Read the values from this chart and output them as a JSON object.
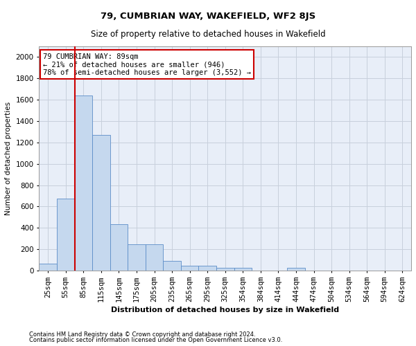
{
  "title1": "79, CUMBRIAN WAY, WAKEFIELD, WF2 8JS",
  "title2": "Size of property relative to detached houses in Wakefield",
  "xlabel": "Distribution of detached houses by size in Wakefield",
  "ylabel": "Number of detached properties",
  "footnote1": "Contains HM Land Registry data © Crown copyright and database right 2024.",
  "footnote2": "Contains public sector information licensed under the Open Government Licence v3.0.",
  "categories": [
    "25sqm",
    "55sqm",
    "85sqm",
    "115sqm",
    "145sqm",
    "175sqm",
    "205sqm",
    "235sqm",
    "265sqm",
    "295sqm",
    "325sqm",
    "354sqm",
    "384sqm",
    "414sqm",
    "444sqm",
    "474sqm",
    "504sqm",
    "534sqm",
    "564sqm",
    "594sqm",
    "624sqm"
  ],
  "values": [
    67,
    672,
    1638,
    1270,
    437,
    247,
    247,
    90,
    42,
    42,
    25,
    25,
    0,
    0,
    27,
    0,
    0,
    0,
    0,
    0,
    0
  ],
  "bar_color": "#c5d8ee",
  "bar_edge_color": "#5b8dc8",
  "grid_color": "#c8d0dc",
  "annotation_text": "79 CUMBRIAN WAY: 89sqm\n← 21% of detached houses are smaller (946)\n78% of semi-detached houses are larger (3,552) →",
  "annotation_box_color": "#ffffff",
  "annotation_box_edge_color": "#cc0000",
  "vline_x_index": 2,
  "vline_color": "#cc0000",
  "ylim": [
    0,
    2100
  ],
  "yticks": [
    0,
    200,
    400,
    600,
    800,
    1000,
    1200,
    1400,
    1600,
    1800,
    2000
  ],
  "bg_color": "#e8eef8",
  "figwidth": 6.0,
  "figheight": 5.0,
  "dpi": 100
}
